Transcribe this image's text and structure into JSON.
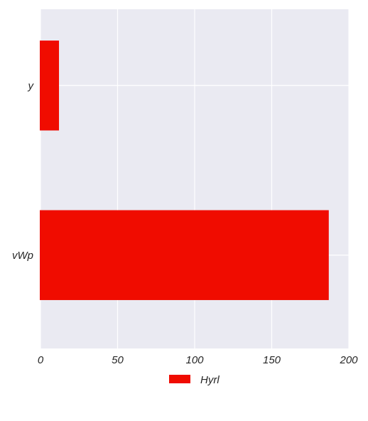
{
  "chart_data": {
    "type": "bar",
    "orientation": "horizontal",
    "categories": [
      "y",
      "vWp"
    ],
    "series": [
      {
        "name": "Hyrl",
        "values": [
          12,
          187
        ],
        "color": "#f00c00"
      }
    ],
    "x_ticks": [
      0,
      50,
      100,
      150,
      200
    ],
    "xlim": [
      0,
      200
    ],
    "title": "",
    "xlabel": "",
    "ylabel": "",
    "grid": true,
    "legend_position": "bottom-center",
    "plot_background": "#eaeaf2",
    "grid_color": "#ffffff"
  }
}
